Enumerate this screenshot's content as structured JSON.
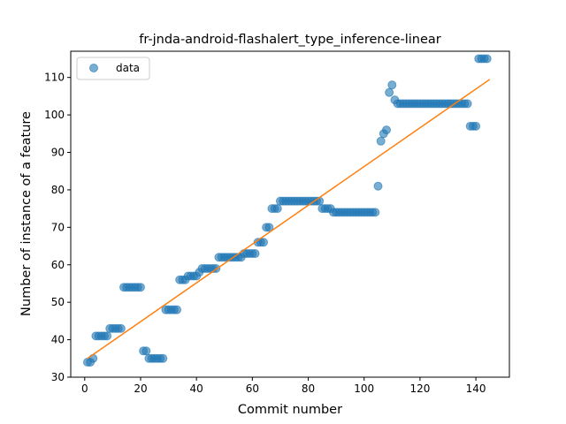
{
  "chart_data": {
    "type": "scatter",
    "title": "fr-jnda-android-flashalert_type_inference-linear",
    "xlabel": "Commit number",
    "ylabel": "Number of instance of a feature",
    "xlim": [
      -5,
      152
    ],
    "ylim": [
      30,
      117
    ],
    "xticks": [
      0,
      20,
      40,
      60,
      80,
      100,
      120,
      140
    ],
    "yticks": [
      30,
      40,
      50,
      60,
      70,
      80,
      90,
      100,
      110
    ],
    "grid": false,
    "legend": {
      "placement": "top-left",
      "entries": [
        "data"
      ]
    },
    "colors": {
      "points": "#1f77b4",
      "fit_line": "#ff7f0e"
    },
    "series": [
      {
        "name": "data",
        "kind": "scatter",
        "points": [
          [
            1,
            34
          ],
          [
            2,
            34
          ],
          [
            3,
            35
          ],
          [
            4,
            41
          ],
          [
            5,
            41
          ],
          [
            6,
            41
          ],
          [
            7,
            41
          ],
          [
            8,
            41
          ],
          [
            9,
            43
          ],
          [
            10,
            43
          ],
          [
            11,
            43
          ],
          [
            12,
            43
          ],
          [
            13,
            43
          ],
          [
            14,
            54
          ],
          [
            15,
            54
          ],
          [
            16,
            54
          ],
          [
            17,
            54
          ],
          [
            18,
            54
          ],
          [
            19,
            54
          ],
          [
            20,
            54
          ],
          [
            21,
            37
          ],
          [
            22,
            37
          ],
          [
            23,
            35
          ],
          [
            24,
            35
          ],
          [
            25,
            35
          ],
          [
            26,
            35
          ],
          [
            27,
            35
          ],
          [
            28,
            35
          ],
          [
            29,
            48
          ],
          [
            30,
            48
          ],
          [
            31,
            48
          ],
          [
            32,
            48
          ],
          [
            33,
            48
          ],
          [
            34,
            56
          ],
          [
            35,
            56
          ],
          [
            36,
            56
          ],
          [
            37,
            57
          ],
          [
            38,
            57
          ],
          [
            39,
            57
          ],
          [
            40,
            57
          ],
          [
            41,
            58
          ],
          [
            42,
            59
          ],
          [
            43,
            59
          ],
          [
            44,
            59
          ],
          [
            45,
            59
          ],
          [
            46,
            59
          ],
          [
            47,
            59
          ],
          [
            48,
            62
          ],
          [
            49,
            62
          ],
          [
            50,
            62
          ],
          [
            51,
            62
          ],
          [
            52,
            62
          ],
          [
            53,
            62
          ],
          [
            54,
            62
          ],
          [
            55,
            62
          ],
          [
            56,
            62
          ],
          [
            57,
            63
          ],
          [
            58,
            63
          ],
          [
            59,
            63
          ],
          [
            60,
            63
          ],
          [
            61,
            63
          ],
          [
            62,
            66
          ],
          [
            63,
            66
          ],
          [
            64,
            66
          ],
          [
            65,
            70
          ],
          [
            66,
            70
          ],
          [
            67,
            75
          ],
          [
            68,
            75
          ],
          [
            69,
            75
          ],
          [
            70,
            77
          ],
          [
            71,
            77
          ],
          [
            72,
            77
          ],
          [
            73,
            77
          ],
          [
            74,
            77
          ],
          [
            75,
            77
          ],
          [
            76,
            77
          ],
          [
            77,
            77
          ],
          [
            78,
            77
          ],
          [
            79,
            77
          ],
          [
            80,
            77
          ],
          [
            81,
            77
          ],
          [
            82,
            77
          ],
          [
            83,
            77
          ],
          [
            84,
            77
          ],
          [
            85,
            75
          ],
          [
            86,
            75
          ],
          [
            87,
            75
          ],
          [
            88,
            75
          ],
          [
            89,
            74
          ],
          [
            90,
            74
          ],
          [
            91,
            74
          ],
          [
            92,
            74
          ],
          [
            93,
            74
          ],
          [
            94,
            74
          ],
          [
            95,
            74
          ],
          [
            96,
            74
          ],
          [
            97,
            74
          ],
          [
            98,
            74
          ],
          [
            99,
            74
          ],
          [
            100,
            74
          ],
          [
            101,
            74
          ],
          [
            102,
            74
          ],
          [
            103,
            74
          ],
          [
            104,
            74
          ],
          [
            105,
            81
          ],
          [
            106,
            93
          ],
          [
            107,
            95
          ],
          [
            108,
            96
          ],
          [
            109,
            106
          ],
          [
            110,
            108
          ],
          [
            111,
            104
          ],
          [
            112,
            103
          ],
          [
            113,
            103
          ],
          [
            114,
            103
          ],
          [
            115,
            103
          ],
          [
            116,
            103
          ],
          [
            117,
            103
          ],
          [
            118,
            103
          ],
          [
            119,
            103
          ],
          [
            120,
            103
          ],
          [
            121,
            103
          ],
          [
            122,
            103
          ],
          [
            123,
            103
          ],
          [
            124,
            103
          ],
          [
            125,
            103
          ],
          [
            126,
            103
          ],
          [
            127,
            103
          ],
          [
            128,
            103
          ],
          [
            129,
            103
          ],
          [
            130,
            103
          ],
          [
            131,
            103
          ],
          [
            132,
            103
          ],
          [
            133,
            103
          ],
          [
            134,
            103
          ],
          [
            135,
            103
          ],
          [
            136,
            103
          ],
          [
            137,
            103
          ],
          [
            138,
            97
          ],
          [
            139,
            97
          ],
          [
            140,
            97
          ],
          [
            141,
            115
          ],
          [
            142,
            115
          ],
          [
            143,
            115
          ],
          [
            144,
            115
          ]
        ]
      },
      {
        "kind": "line",
        "points": [
          [
            1,
            35
          ],
          [
            145,
            109.5
          ]
        ]
      }
    ]
  }
}
